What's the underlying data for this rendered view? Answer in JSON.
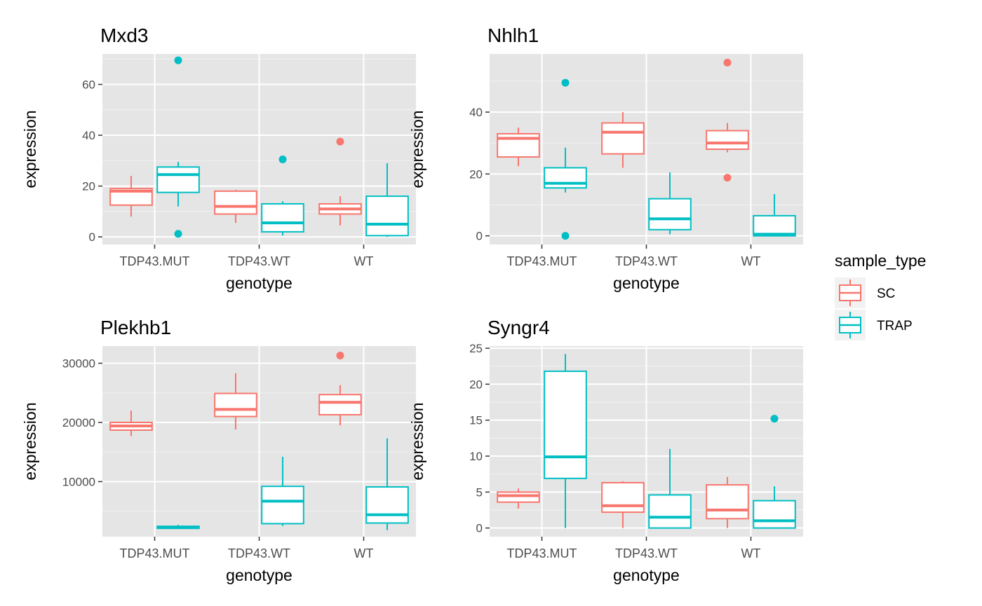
{
  "colors": {
    "panel_bg": "#E5E5E5",
    "grid_major": "#FFFFFF",
    "grid_minor": "#F2F2F2",
    "axis_text": "#4D4D4D",
    "tick": "#333333",
    "SC": "#F8766D",
    "TRAP": "#00BFC4"
  },
  "legend": {
    "title": "sample_type",
    "placement": "right",
    "items": [
      {
        "key": "SC",
        "label": "SC"
      },
      {
        "key": "TRAP",
        "label": "TRAP"
      }
    ]
  },
  "chart_data": [
    {
      "type": "box",
      "title": "Mxd3",
      "xlabel": "genotype",
      "ylabel": "expression",
      "categories": [
        "TDP43.MUT",
        "TDP43.WT",
        "WT"
      ],
      "ylim": [
        -3,
        72
      ],
      "yticks": [
        0,
        20,
        40,
        60
      ],
      "grid": true,
      "series": [
        {
          "name": "SC",
          "boxes": [
            {
              "min": 8,
              "q1": 12.5,
              "median": 18,
              "q3": 19,
              "max": 24,
              "outliers": []
            },
            {
              "min": 5.5,
              "q1": 9,
              "median": 12,
              "q3": 18,
              "max": 18.5,
              "outliers": []
            },
            {
              "min": 4.5,
              "q1": 9,
              "median": 11,
              "q3": 13,
              "max": 16,
              "outliers": [
                37.5
              ]
            }
          ]
        },
        {
          "name": "TRAP",
          "boxes": [
            {
              "min": 12,
              "q1": 17.5,
              "median": 24.5,
              "q3": 27.5,
              "max": 29.5,
              "outliers": [
                69.5,
                1.2
              ]
            },
            {
              "min": 0.5,
              "q1": 2,
              "median": 5.5,
              "q3": 13,
              "max": 14,
              "outliers": [
                30.5
              ]
            },
            {
              "min": 0,
              "q1": 0.5,
              "median": 5,
              "q3": 16,
              "max": 29,
              "outliers": []
            }
          ]
        }
      ]
    },
    {
      "type": "box",
      "title": "Nhlh1",
      "xlabel": "genotype",
      "ylabel": "expression",
      "categories": [
        "TDP43.MUT",
        "TDP43.WT",
        "WT"
      ],
      "ylim": [
        -2.8,
        58.8
      ],
      "yticks": [
        0,
        20,
        40
      ],
      "grid": true,
      "series": [
        {
          "name": "SC",
          "boxes": [
            {
              "min": 22.5,
              "q1": 25.5,
              "median": 31.5,
              "q3": 33,
              "max": 35,
              "outliers": []
            },
            {
              "min": 22,
              "q1": 26.5,
              "median": 33.5,
              "q3": 36.5,
              "max": 40,
              "outliers": []
            },
            {
              "min": 27,
              "q1": 28,
              "median": 30,
              "q3": 34,
              "max": 36.5,
              "outliers": [
                56,
                18.8
              ]
            }
          ]
        },
        {
          "name": "TRAP",
          "boxes": [
            {
              "min": 14,
              "q1": 15.5,
              "median": 17,
              "q3": 22,
              "max": 28.5,
              "outliers": [
                49.5,
                0
              ]
            },
            {
              "min": 0.5,
              "q1": 2,
              "median": 5.5,
              "q3": 12,
              "max": 20.5,
              "outliers": []
            },
            {
              "min": 0,
              "q1": 0,
              "median": 0.5,
              "q3": 6.5,
              "max": 13.5,
              "outliers": []
            }
          ]
        }
      ]
    },
    {
      "type": "box",
      "title": "Plekhb1",
      "xlabel": "genotype",
      "ylabel": "expression",
      "categories": [
        "TDP43.MUT",
        "TDP43.WT",
        "WT"
      ],
      "ylim": [
        700,
        32900
      ],
      "yticks": [
        10000,
        20000,
        30000
      ],
      "grid": true,
      "series": [
        {
          "name": "SC",
          "boxes": [
            {
              "min": 17700,
              "q1": 18700,
              "median": 19400,
              "q3": 20000,
              "max": 22000,
              "outliers": []
            },
            {
              "min": 18800,
              "q1": 21000,
              "median": 22200,
              "q3": 24900,
              "max": 28300,
              "outliers": []
            },
            {
              "min": 19500,
              "q1": 21300,
              "median": 23400,
              "q3": 24700,
              "max": 26300,
              "outliers": [
                31300
              ]
            }
          ]
        },
        {
          "name": "TRAP",
          "boxes": [
            {
              "min": 2000,
              "q1": 2100,
              "median": 2300,
              "q3": 2450,
              "max": 2700,
              "outliers": []
            },
            {
              "min": 2500,
              "q1": 2900,
              "median": 6700,
              "q3": 9200,
              "max": 14200,
              "outliers": []
            },
            {
              "min": 1800,
              "q1": 3000,
              "median": 4400,
              "q3": 9100,
              "max": 17300,
              "outliers": []
            }
          ]
        }
      ]
    },
    {
      "type": "box",
      "title": "Syngr4",
      "xlabel": "genotype",
      "ylabel": "expression",
      "categories": [
        "TDP43.MUT",
        "TDP43.WT",
        "WT"
      ],
      "ylim": [
        -1.2,
        25.3
      ],
      "yticks": [
        0,
        5,
        10,
        15,
        20,
        25
      ],
      "grid": true,
      "series": [
        {
          "name": "SC",
          "boxes": [
            {
              "min": 2.7,
              "q1": 3.6,
              "median": 4.5,
              "q3": 5,
              "max": 5.5,
              "outliers": []
            },
            {
              "min": 0,
              "q1": 2.2,
              "median": 3.1,
              "q3": 6.3,
              "max": 6.5,
              "outliers": []
            },
            {
              "min": 0,
              "q1": 1.3,
              "median": 2.5,
              "q3": 6,
              "max": 7.1,
              "outliers": []
            }
          ]
        },
        {
          "name": "TRAP",
          "boxes": [
            {
              "min": 0,
              "q1": 6.9,
              "median": 9.9,
              "q3": 21.8,
              "max": 24.2,
              "outliers": []
            },
            {
              "min": 0,
              "q1": 0,
              "median": 1.5,
              "q3": 4.6,
              "max": 11,
              "outliers": []
            },
            {
              "min": 0,
              "q1": 0,
              "median": 1,
              "q3": 3.8,
              "max": 5.8,
              "outliers": [
                15.2
              ]
            }
          ]
        }
      ]
    }
  ]
}
